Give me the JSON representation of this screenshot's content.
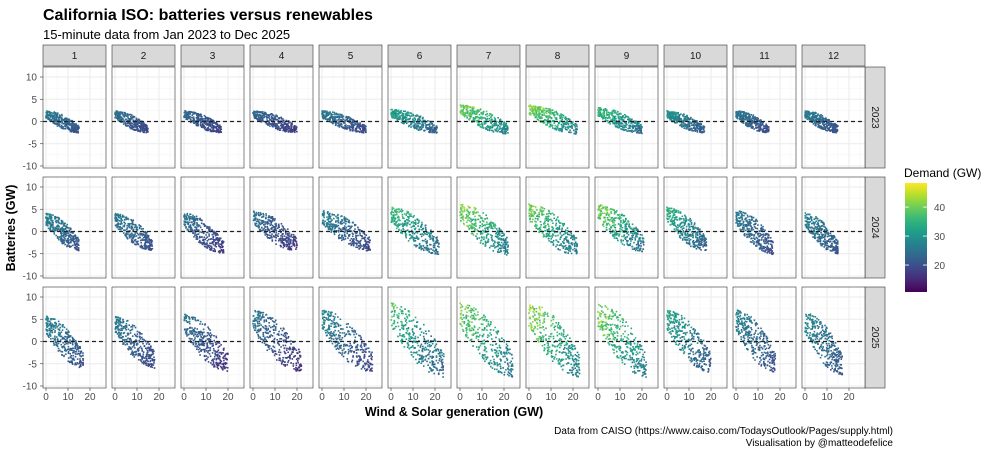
{
  "chart_data": {
    "type": "scatter",
    "title": "California ISO: batteries versus renewables",
    "subtitle": "15-minute data from Jan 2023 to Dec 2025",
    "xlabel": "Wind & Solar generation (GW)",
    "ylabel": "Batteries (GW)",
    "caption": [
      "Data from CAISO (https://www.caiso.com/TodaysOutlook/Pages/supply.html)",
      "Visualisation by @matteodefelice"
    ],
    "facet_columns": [
      "1",
      "2",
      "3",
      "4",
      "5",
      "6",
      "7",
      "8",
      "9",
      "10",
      "11",
      "12"
    ],
    "facet_rows": [
      "2023",
      "2024",
      "2025"
    ],
    "x_ticks": [
      0,
      10,
      20
    ],
    "y_ticks": [
      10,
      5,
      0,
      -5,
      -10
    ],
    "xlim": [
      -1.4,
      27.3
    ],
    "ylim": [
      -11,
      12.2
    ],
    "reference_line_y": 0,
    "color_legend": {
      "title": "Demand (GW)",
      "ticks": [
        40,
        30,
        20
      ],
      "range": [
        10.7,
        48.3
      ],
      "palette": "viridis"
    },
    "panels_summary_note": "per panel: [max generation GW, max battery GW, min battery GW, min demand GW, max demand GW]",
    "panels": {
      "2023": [
        [
          15,
          3,
          -3,
          18,
          28
        ],
        [
          15,
          3,
          -3,
          17,
          26
        ],
        [
          17,
          3,
          -3,
          16,
          25
        ],
        [
          20,
          3,
          -3,
          15,
          25
        ],
        [
          20,
          3,
          -3,
          16,
          28
        ],
        [
          21,
          3.5,
          -3,
          18,
          36
        ],
        [
          22,
          5,
          -3,
          22,
          45
        ],
        [
          22,
          5,
          -3,
          22,
          45
        ],
        [
          20,
          4,
          -3,
          20,
          40
        ],
        [
          17,
          3,
          -3,
          18,
          32
        ],
        [
          15,
          3,
          -3,
          17,
          27
        ],
        [
          15,
          3,
          -3,
          18,
          28
        ]
      ],
      "2024": [
        [
          15,
          5,
          -5,
          18,
          29
        ],
        [
          17,
          5,
          -5,
          17,
          28
        ],
        [
          18,
          5,
          -6,
          14,
          27
        ],
        [
          20,
          6,
          -5,
          14,
          27
        ],
        [
          22,
          6,
          -5,
          15,
          30
        ],
        [
          22,
          7,
          -6,
          18,
          40
        ],
        [
          22,
          8,
          -6,
          20,
          46
        ],
        [
          22,
          8,
          -6,
          20,
          44
        ],
        [
          21,
          8,
          -5,
          19,
          45
        ],
        [
          18,
          7,
          -5,
          17,
          38
        ],
        [
          17,
          6,
          -6,
          17,
          28
        ],
        [
          15,
          5,
          -6,
          18,
          29
        ]
      ],
      "2025": [
        [
          17,
          7,
          -7,
          17,
          29
        ],
        [
          18,
          7,
          -7,
          16,
          28
        ],
        [
          20,
          7.5,
          -8,
          13,
          27
        ],
        [
          22,
          9,
          -8,
          12,
          28
        ],
        [
          23,
          9,
          -8,
          14,
          31
        ],
        [
          24,
          11,
          -9,
          17,
          40
        ],
        [
          24,
          11,
          -9,
          20,
          44
        ],
        [
          23,
          11,
          -9,
          21,
          46
        ],
        [
          22,
          11,
          -9,
          19,
          46
        ],
        [
          20,
          9,
          -8,
          17,
          35
        ],
        [
          18,
          9,
          -8,
          17,
          29
        ],
        [
          17,
          8,
          -9,
          18,
          30
        ]
      ]
    }
  }
}
